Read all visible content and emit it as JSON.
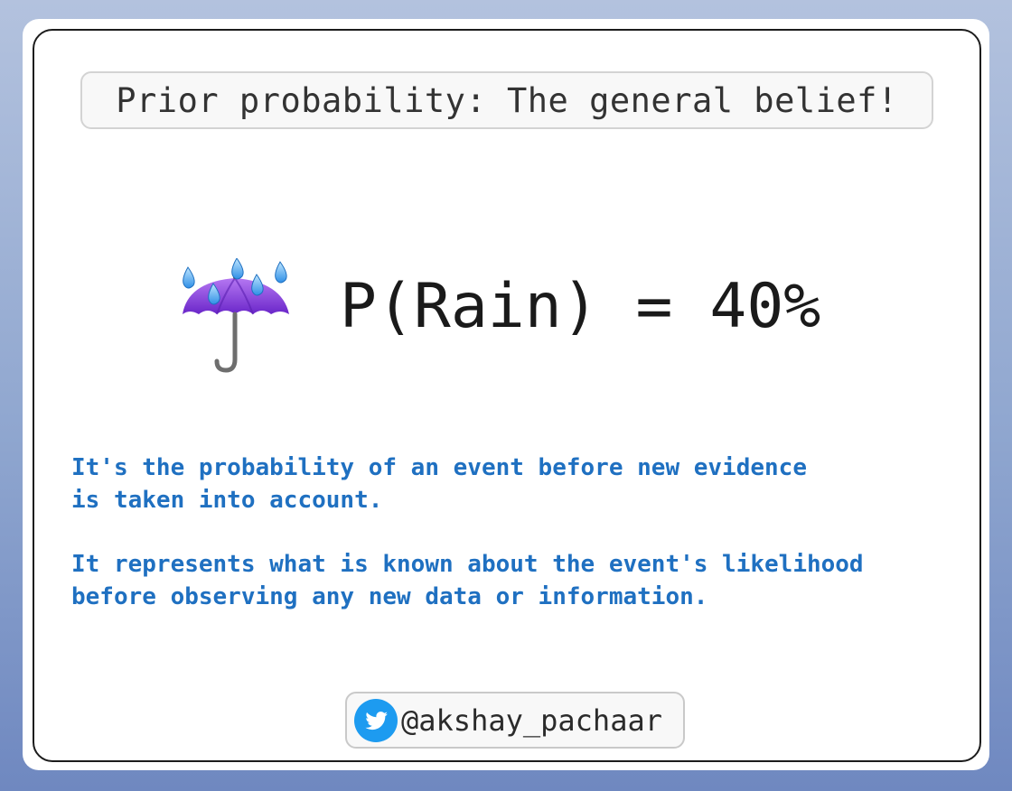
{
  "title": "Prior probability: The general belief!",
  "formula": "P(Rain) = 40%",
  "probability": {
    "event": "Rain",
    "value_percent": 40
  },
  "description": {
    "line1": "It's the probability of an event before new evidence",
    "line2": "is taken into account.",
    "line3": "It represents what is known about the event's likelihood",
    "line4": "before observing any new data or information."
  },
  "footer": {
    "handle": "@akshay_pachaar",
    "icon": "twitter-bird-icon"
  },
  "icons": {
    "main": "umbrella-with-rain-drops-icon"
  },
  "colors": {
    "background_top": "#b3c2de",
    "background_bottom": "#6f88c0",
    "description_text": "#1f70c1",
    "twitter_blue": "#1d9bf0",
    "umbrella_purple": "#8a3ee0"
  }
}
